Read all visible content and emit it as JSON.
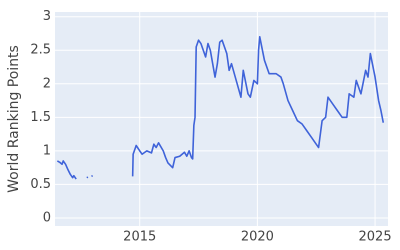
{
  "chart_data": {
    "type": "line",
    "y_label": "World Ranking Points",
    "x": [
      2011.5,
      2011.6,
      2011.7,
      2011.75,
      2011.85,
      2011.95,
      2012.05,
      2012.15,
      2012.2,
      2012.3,
      2012.5,
      2012.75,
      2012.8,
      2012.9,
      2012.95,
      2013.0,
      2013.5,
      2014.7,
      2014.72,
      2014.85,
      2015.0,
      2015.1,
      2015.3,
      2015.5,
      2015.6,
      2015.7,
      2015.8,
      2016.0,
      2016.1,
      2016.2,
      2016.4,
      2016.5,
      2016.7,
      2016.9,
      2017.0,
      2017.1,
      2017.2,
      2017.25,
      2017.3,
      2017.35,
      2017.4,
      2017.5,
      2017.6,
      2017.8,
      2017.9,
      2018.0,
      2018.2,
      2018.3,
      2018.4,
      2018.5,
      2018.7,
      2018.8,
      2018.9,
      2019.1,
      2019.3,
      2019.4,
      2019.6,
      2019.7,
      2019.85,
      2020.0,
      2020.05,
      2020.1,
      2020.3,
      2020.5,
      2020.8,
      2021.0,
      2021.1,
      2021.3,
      2021.5,
      2021.7,
      2021.9,
      2022.1,
      2022.3,
      2022.5,
      2022.6,
      2022.75,
      2022.9,
      2023.0,
      2023.2,
      2023.4,
      2023.6,
      2023.8,
      2023.9,
      2024.1,
      2024.2,
      2024.4,
      2024.6,
      2024.7,
      2024.8,
      2025.0,
      2025.15,
      2025.25,
      2025.35
    ],
    "series": [
      {
        "name": "World Ranking Points",
        "color": "#3f63d9",
        "values": [
          0.85,
          0.83,
          0.8,
          0.85,
          0.8,
          0.72,
          0.65,
          0.6,
          0.63,
          0.58,
          null,
          0.6,
          0.61,
          null,
          0.62,
          0.63,
          null,
          0.62,
          0.95,
          1.08,
          1.0,
          0.95,
          1.0,
          0.97,
          1.1,
          1.05,
          1.12,
          1.0,
          0.9,
          0.82,
          0.75,
          0.9,
          0.92,
          0.98,
          0.92,
          1.0,
          0.9,
          0.88,
          1.38,
          1.5,
          2.55,
          2.65,
          2.6,
          2.4,
          2.6,
          2.5,
          2.1,
          2.3,
          2.62,
          2.65,
          2.45,
          2.2,
          2.3,
          2.05,
          1.8,
          2.2,
          1.85,
          1.8,
          2.05,
          2.0,
          2.5,
          2.7,
          2.35,
          2.15,
          2.15,
          2.1,
          2.0,
          1.75,
          1.6,
          1.45,
          1.4,
          1.3,
          1.2,
          1.1,
          1.05,
          1.45,
          1.5,
          1.8,
          1.7,
          1.6,
          1.5,
          1.5,
          1.85,
          1.8,
          2.05,
          1.85,
          2.2,
          2.1,
          2.45,
          2.1,
          1.75,
          1.6,
          1.42
        ]
      }
    ],
    "xlim": [
      2011.4,
      2025.55
    ],
    "ylim": [
      -0.12,
      3.07
    ],
    "xticks": [
      2015,
      2020,
      2025
    ],
    "yticks": [
      0,
      0.5,
      1,
      1.5,
      2,
      2.5,
      3
    ],
    "grid": true
  }
}
